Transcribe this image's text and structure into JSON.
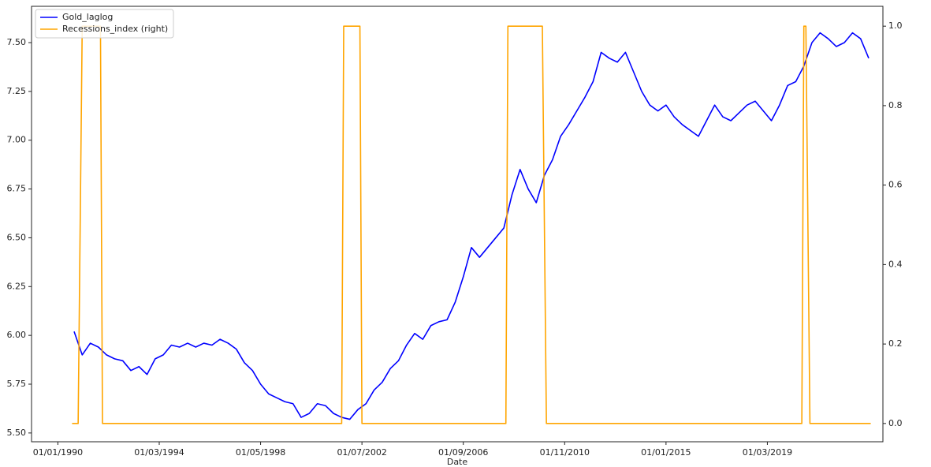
{
  "chart_data": {
    "type": "line",
    "x_label": "Date",
    "x": [
      "01/09/1990",
      "01/01/1991",
      "01/05/1991",
      "01/09/1991",
      "01/01/1992",
      "01/05/1992",
      "01/09/1992",
      "01/01/1993",
      "01/05/1993",
      "01/09/1993",
      "01/01/1994",
      "01/05/1994",
      "01/09/1994",
      "01/01/1995",
      "01/05/1995",
      "01/09/1995",
      "01/01/1996",
      "01/05/1996",
      "01/09/1996",
      "01/01/1997",
      "01/05/1997",
      "01/09/1997",
      "01/01/1998",
      "01/05/1998",
      "01/09/1998",
      "01/01/1999",
      "01/05/1999",
      "01/09/1999",
      "01/01/2000",
      "01/05/2000",
      "01/09/2000",
      "01/01/2001",
      "01/05/2001",
      "01/09/2001",
      "01/01/2002",
      "01/05/2002",
      "01/09/2002",
      "01/01/2003",
      "01/05/2003",
      "01/09/2003",
      "01/01/2004",
      "01/05/2004",
      "01/09/2004",
      "01/01/2005",
      "01/05/2005",
      "01/09/2005",
      "01/01/2006",
      "01/05/2006",
      "01/09/2006",
      "01/01/2007",
      "01/05/2007",
      "01/09/2007",
      "01/01/2008",
      "01/05/2008",
      "01/09/2008",
      "01/01/2009",
      "01/05/2009",
      "01/09/2009",
      "01/01/2010",
      "01/05/2010",
      "01/09/2010",
      "01/01/2011",
      "01/05/2011",
      "01/09/2011",
      "01/01/2012",
      "01/05/2012",
      "01/09/2012",
      "01/01/2013",
      "01/05/2013",
      "01/09/2013",
      "01/01/2014",
      "01/05/2014",
      "01/09/2014",
      "01/01/2015",
      "01/05/2015",
      "01/09/2015",
      "01/01/2016",
      "01/05/2016",
      "01/09/2016",
      "01/01/2017",
      "01/05/2017",
      "01/09/2017",
      "01/01/2018",
      "01/05/2018",
      "01/09/2018",
      "01/01/2019",
      "01/05/2019",
      "01/09/2019",
      "01/01/2020",
      "01/05/2020",
      "01/09/2020",
      "01/01/2021",
      "01/05/2021",
      "01/09/2021",
      "01/01/2022",
      "01/05/2022",
      "01/09/2022",
      "01/01/2023",
      "01/05/2023"
    ],
    "series": [
      {
        "name": "Gold_laglog",
        "color": "#0000ff",
        "axis": "y",
        "values": [
          6.02,
          5.9,
          5.96,
          5.94,
          5.9,
          5.88,
          5.87,
          5.82,
          5.84,
          5.8,
          5.88,
          5.9,
          5.95,
          5.94,
          5.96,
          5.94,
          5.96,
          5.95,
          5.98,
          5.96,
          5.93,
          5.86,
          5.82,
          5.75,
          5.7,
          5.68,
          5.66,
          5.65,
          5.58,
          5.6,
          5.65,
          5.64,
          5.6,
          5.58,
          5.57,
          5.62,
          5.65,
          5.72,
          5.76,
          5.83,
          5.87,
          5.95,
          6.01,
          5.98,
          6.05,
          6.07,
          6.08,
          6.17,
          6.3,
          6.45,
          6.4,
          6.45,
          6.5,
          6.55,
          6.72,
          6.85,
          6.75,
          6.68,
          6.82,
          6.9,
          7.02,
          7.08,
          7.15,
          7.22,
          7.3,
          7.45,
          7.42,
          7.4,
          7.45,
          7.35,
          7.25,
          7.18,
          7.15,
          7.18,
          7.12,
          7.08,
          7.05,
          7.02,
          7.1,
          7.18,
          7.12,
          7.1,
          7.14,
          7.18,
          7.2,
          7.15,
          7.1,
          7.18,
          7.28,
          7.3,
          7.38,
          7.5,
          7.55,
          7.52,
          7.48,
          7.5,
          7.55,
          7.52,
          7.42
        ]
      },
      {
        "name": "Recessions_index (right)",
        "color": "#ffa500",
        "axis": "y2",
        "x": [
          "01/08/1990",
          "01/11/1990",
          "01/01/1991",
          "01/10/1991",
          "01/11/1991",
          "01/09/2001",
          "01/10/2001",
          "01/06/2002",
          "01/07/2002",
          "01/06/2008",
          "01/07/2008",
          "01/12/2009",
          "01/02/2010",
          "01/08/2020",
          "01/09/2020",
          "01/10/2020",
          "01/12/2020",
          "01/06/2023"
        ],
        "values": [
          0,
          0,
          1,
          1,
          0,
          0,
          1,
          1,
          0,
          0,
          1,
          1,
          0,
          0,
          1,
          1,
          0,
          0
        ]
      }
    ],
    "xlim": [
      "01/12/1988",
      "01/12/2023"
    ],
    "xticks": [
      "01/01/1990",
      "01/03/1994",
      "01/05/1998",
      "01/07/2002",
      "01/09/2006",
      "01/11/2010",
      "01/01/2015",
      "01/03/2019"
    ],
    "ylim": [
      5.455,
      7.686
    ],
    "yticks": [
      {
        "value": 5.5,
        "label": "5.50"
      },
      {
        "value": 5.75,
        "label": "5.75"
      },
      {
        "value": 6.0,
        "label": "6.00"
      },
      {
        "value": 6.25,
        "label": "6.25"
      },
      {
        "value": 6.5,
        "label": "6.50"
      },
      {
        "value": 6.75,
        "label": "6.75"
      },
      {
        "value": 7.0,
        "label": "7.00"
      },
      {
        "value": 7.25,
        "label": "7.25"
      },
      {
        "value": 7.5,
        "label": "7.50"
      }
    ],
    "y2lim": [
      -0.046,
      1.05
    ],
    "y2ticks": [
      {
        "value": 0,
        "label": "0.0"
      },
      {
        "value": 0.2,
        "label": "0.2"
      },
      {
        "value": 0.4,
        "label": "0.4"
      },
      {
        "value": 0.6,
        "label": "0.6"
      },
      {
        "value": 0.8,
        "label": "0.8"
      },
      {
        "value": 1,
        "label": "1.0"
      }
    ],
    "legend": "upper left"
  }
}
